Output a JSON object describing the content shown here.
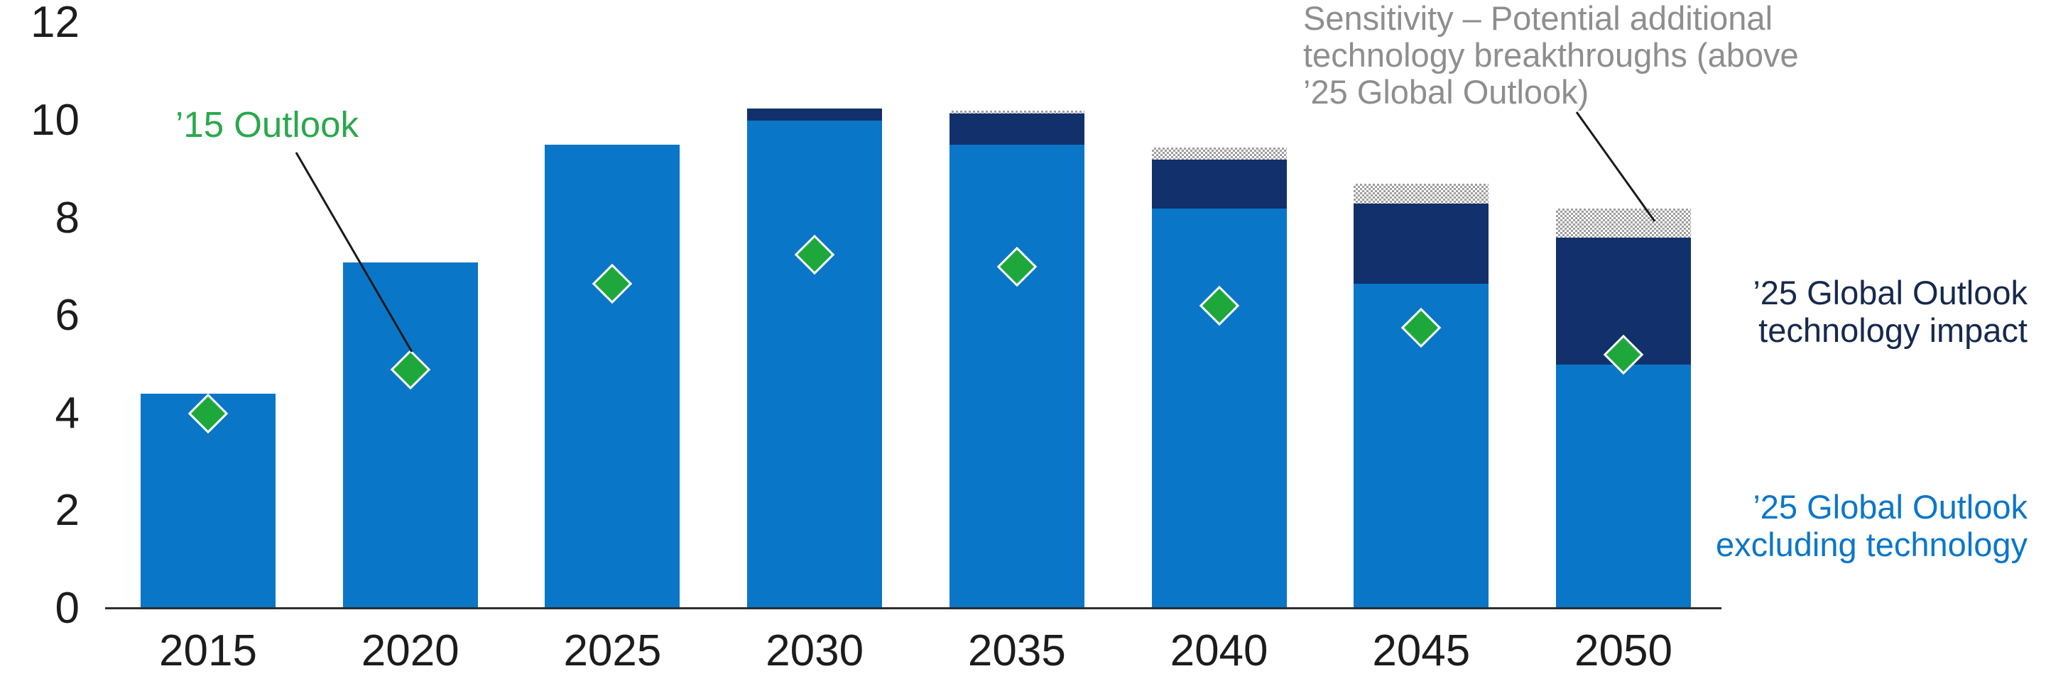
{
  "chart_data": {
    "type": "bar",
    "stacked": true,
    "title": "",
    "categories": [
      "2015",
      "2020",
      "2025",
      "2030",
      "2035",
      "2040",
      "2045",
      "2050"
    ],
    "series": [
      {
        "name": "’25 Global Outlook excluding technology",
        "color": "#0a76c8",
        "style": "solid",
        "values": [
          4.4,
          7.1,
          9.5,
          10.0,
          9.5,
          8.2,
          6.65,
          5.0
        ]
      },
      {
        "name": "’25 Global Outlook technology impact",
        "color": "#12306b",
        "style": "solid",
        "values": [
          0,
          0,
          0,
          0.25,
          0.65,
          1.0,
          1.65,
          2.6
        ]
      },
      {
        "name": "Sensitivity – Potential additional technology breakthroughs (above ’25 Global Outlook)",
        "color": "#9e9e9e",
        "style": "checker-hatch",
        "values": [
          0,
          0,
          0,
          0,
          0.05,
          0.25,
          0.4,
          0.6
        ]
      }
    ],
    "markers": {
      "name": "’15 Outlook",
      "shape": "diamond",
      "color": "#1ea83c",
      "values": [
        4.0,
        4.9,
        6.65,
        7.25,
        7.0,
        6.2,
        5.75,
        5.2
      ]
    },
    "ylim": [
      0,
      12
    ],
    "yticks": [
      "0",
      "2",
      "4",
      "6",
      "8",
      "10",
      "12"
    ],
    "grid": false,
    "legend_position": "annotated-labels"
  },
  "annotations": {
    "outlook15": {
      "text": "’15 Outlook",
      "color": "#2aa84c"
    },
    "sensitivity": {
      "line1": "Sensitivity – Potential additional",
      "line2": "technology breakthroughs (above",
      "line3": "’25 Global Outlook)",
      "color": "#8e8e8e"
    },
    "tech_impact": {
      "line1": "’25 Global Outlook",
      "line2": "technology impact",
      "color": "#16294d"
    },
    "excl_tech": {
      "line1": "’25 Global Outlook",
      "line2": "excluding technology",
      "color": "#0b76c9"
    }
  }
}
